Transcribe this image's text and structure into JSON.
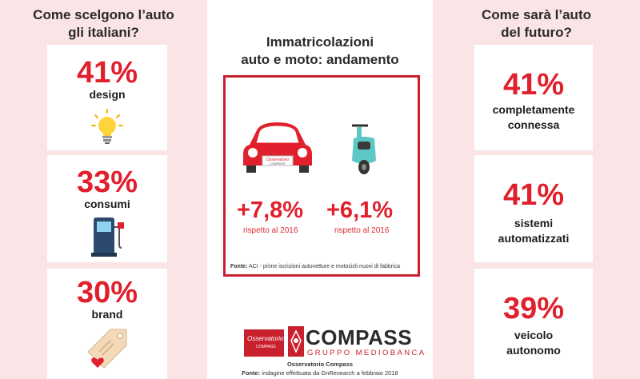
{
  "left": {
    "title_line1": "Come scelgono l’auto",
    "title_line2": "gli italiani?",
    "cards": [
      {
        "percent": "41%",
        "label": "design",
        "icon": "light-bulb-icon"
      },
      {
        "percent": "33%",
        "label": "consumi",
        "icon": "fuel-pump-icon"
      },
      {
        "percent": "30%",
        "label": "brand",
        "icon": "price-tag-heart-icon"
      }
    ]
  },
  "middle": {
    "title_line1": "Immatricolazioni",
    "title_line2": "auto e moto: andamento",
    "car_plate": "Osservatorio COMPASS",
    "car": {
      "value": "+7,8%",
      "note": "rispetto al 2016",
      "icon": "red-car-icon"
    },
    "moto": {
      "value": "+6,1%",
      "note": "rispetto al 2016",
      "icon": "scooter-icon"
    },
    "source_label": "Fonte:",
    "source_text": " ACI - prime iscrizioni autovetture e motocicli nuovi di fabbrica"
  },
  "right": {
    "title_line1": "Come sarà l’auto",
    "title_line2": "del futuro?",
    "cards": [
      {
        "percent": "41%",
        "label_line1": "completamente",
        "label_line2": "connessa"
      },
      {
        "percent": "41%",
        "label_line1": "sistemi",
        "label_line2": "automatizzati"
      },
      {
        "percent": "39%",
        "label_line1": "veicolo",
        "label_line2": "autonomo"
      }
    ]
  },
  "footer": {
    "logo_line1": "Osservatorio",
    "logo_line2": "COMPASS",
    "brand": "COMPASS",
    "group": "GRUPPO MEDIOBANCA",
    "line1": "Osservatorio Compass",
    "source_label": "Fonte:",
    "source_text": " indagine effettuata da GnResearch a febbraio 2018"
  },
  "colors": {
    "accent_red": "#e0202c",
    "panel_pink": "#fbe4e6",
    "frame_red": "#c8202d",
    "scooter_teal": "#5cc7c4"
  }
}
